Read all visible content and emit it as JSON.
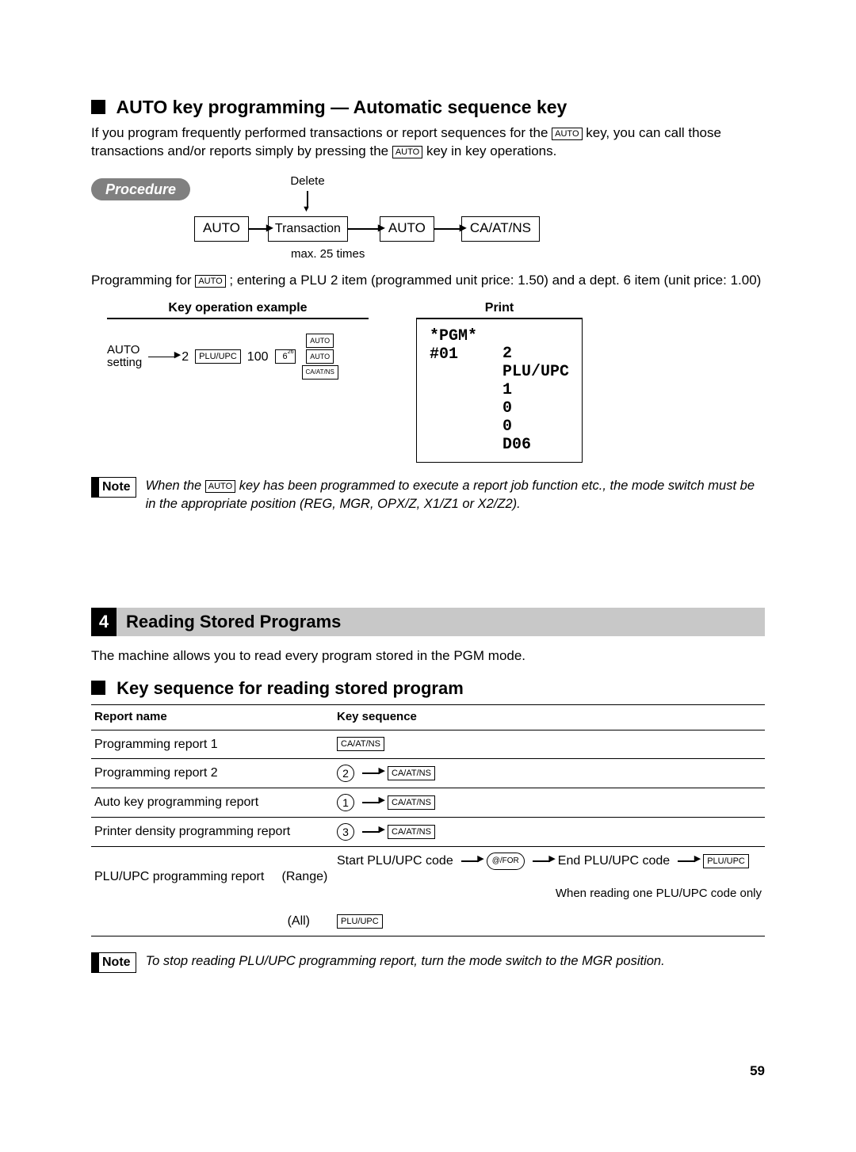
{
  "heading1": "AUTO key programming — Automatic sequence key",
  "intro1a": "If you program frequently performed transactions or report sequences for the ",
  "intro1b": " key, you can call those transactions and/or reports simply by pressing the ",
  "intro1c": " key in key operations.",
  "autoKeyLabel": "AUTO",
  "procedureLabel": "Procedure",
  "deleteLabel": "Delete",
  "transactionLabel": "Transaction",
  "caatnsLabel": "CA/AT/NS",
  "maxNote": "max. 25 times",
  "programmingFor": "Programming for ",
  "programmingForB": "; entering a PLU 2 item (programmed unit price: 1.50) and a dept. 6 item (unit price: 1.00)",
  "keyOpHeading": "Key operation example",
  "printHeading": "Print",
  "autoSettingA": "AUTO",
  "autoSettingB": "setting",
  "exNum2": "2",
  "pluupcLabel": "PLU/UPC",
  "exNum100": "100",
  "exKey6": "6",
  "exKey6sup": "26",
  "printLines": {
    "l1a": "*PGM*",
    "l1b": "#01",
    "r1": "2",
    "r2": "PLU/UPC",
    "r3": "1",
    "r4": "0",
    "r5": "0",
    "r6": "D06"
  },
  "noteLabel": "Note",
  "note1a": "When the ",
  "note1b": " key has been programmed to execute a report job function etc., the mode switch must be in the appropriate position (REG, MGR, OPX/Z, X1/Z1 or X2/Z2).",
  "sec4num": "4",
  "sec4title": "Reading Stored Programs",
  "sec4intro": "The machine allows you to read every program stored in the PGM mode.",
  "heading2": "Key sequence for reading stored program",
  "table": {
    "col1": "Report name",
    "col2": "Key sequence",
    "rows": [
      {
        "name": "Programming report 1",
        "seq": {
          "type": "caatns"
        }
      },
      {
        "name": "Programming report 2",
        "seq": {
          "type": "num_caatns",
          "n": "2"
        }
      },
      {
        "name": "Auto key programming report",
        "seq": {
          "type": "num_caatns",
          "n": "1"
        }
      },
      {
        "name": "Printer density programming report",
        "seq": {
          "type": "num_caatns",
          "n": "3"
        }
      }
    ],
    "pluRow": {
      "name": "PLU/UPC programming report",
      "rangeLabel": "(Range)",
      "startLabel": "Start PLU/UPC code",
      "atforLabel": "@/FOR",
      "endLabel": "End PLU/UPC code",
      "pluupc": "PLU/UPC",
      "sub": "When reading one PLU/UPC code only",
      "allLabel": "(All)"
    }
  },
  "note2": "To stop reading PLU/UPC programming report, turn the mode switch to the MGR position.",
  "pageNum": "59",
  "colors": {
    "pill": "#808080",
    "bar": "#c8c8c8"
  }
}
